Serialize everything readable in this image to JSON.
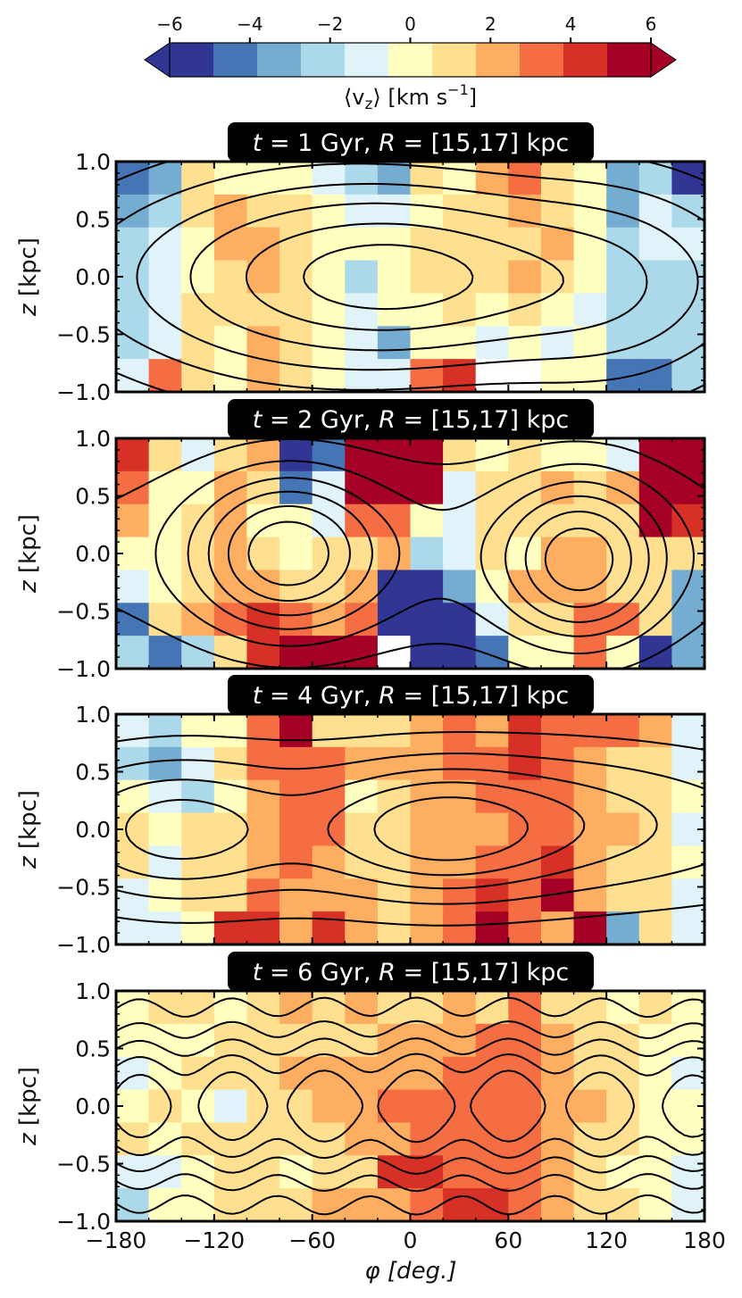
{
  "chart_data": {
    "type": "heatmap",
    "colorbar": {
      "label_prefix": "⟨v",
      "label_sub": "z",
      "label_suffix": "⟩ [km s",
      "label_sup": "−1",
      "label_end": "]",
      "range": [
        -6,
        6
      ],
      "ticks": [
        -6,
        -4,
        -2,
        0,
        2,
        4,
        6
      ],
      "tick_labels": [
        "−6",
        "−4",
        "−2",
        "0",
        "2",
        "4",
        "6"
      ],
      "extend": "both",
      "colors": [
        "#313695",
        "#4575b4",
        "#74add1",
        "#abd9e9",
        "#e0f3f8",
        "#ffffbf",
        "#fee090",
        "#fdae61",
        "#f46d43",
        "#d73027",
        "#a50026"
      ]
    },
    "xlabel": "φ [deg.]",
    "ylabel": "z [kpc]",
    "xlim": [
      -180,
      180
    ],
    "ylim": [
      -1.0,
      1.0
    ],
    "xticks": [
      -180,
      -120,
      -60,
      0,
      60,
      120,
      180
    ],
    "xtick_labels": [
      "−180",
      "−120",
      "−60",
      "0",
      "60",
      "120",
      "180"
    ],
    "yticks": [
      1.0,
      0.5,
      0.0,
      -0.5,
      -1.0
    ],
    "ytick_labels": [
      "1.0",
      "0.5",
      "0.0",
      "−0.5",
      "−1.0"
    ],
    "grid": {
      "n_phi_bins": 18,
      "n_z_bins": 7,
      "phi_bin_width_deg": 20
    },
    "panels": [
      {
        "title_t": "t",
        "title_eq": " =  ",
        "title_age": "1 Gyr, ",
        "title_r": "R",
        "title_range": " = [15,17] kpc",
        "values": [
          [
            -4,
            -3,
            1,
            0,
            0,
            0,
            -1,
            -2,
            -3,
            1,
            0,
            2,
            3,
            1,
            0,
            -3,
            -2,
            -5
          ],
          [
            -3,
            -2,
            1,
            2,
            1,
            1,
            0,
            -1,
            -1,
            0,
            1,
            1,
            2,
            1,
            0,
            -3,
            -1,
            -2
          ],
          [
            -2,
            -1,
            0,
            2,
            2,
            1,
            0,
            0,
            0,
            1,
            1,
            1,
            1,
            2,
            0,
            -2,
            -1,
            -1
          ],
          [
            -2,
            -1,
            0,
            1,
            2,
            1,
            0,
            -2,
            0,
            1,
            1,
            1,
            2,
            1,
            0,
            -2,
            -2,
            -2
          ],
          [
            -2,
            -1,
            1,
            1,
            1,
            1,
            0,
            -1,
            0,
            0,
            1,
            0,
            1,
            0,
            -1,
            -2,
            -2,
            -2
          ],
          [
            -2,
            -1,
            1,
            0,
            2,
            1,
            0,
            -1,
            -3,
            0,
            0,
            -1,
            0,
            -1,
            0,
            -2,
            -2,
            -2
          ],
          [
            -1,
            3,
            1,
            0,
            2,
            1,
            0,
            -1,
            -1,
            3,
            4,
            null,
            null,
            0,
            0,
            -4,
            -4,
            -2
          ]
        ],
        "contour_levels": [
          0.15,
          0.28,
          0.42,
          0.58,
          0.75,
          0.9
        ]
      },
      {
        "title_t": "t",
        "title_eq": " =  ",
        "title_age": "2 Gyr, ",
        "title_r": "R",
        "title_range": " = [15,17] kpc",
        "values": [
          [
            4,
            1,
            -1,
            1,
            2,
            -5,
            -4,
            6,
            6,
            6,
            1,
            0,
            1,
            0,
            0,
            -1,
            6,
            6
          ],
          [
            3,
            0,
            0,
            2,
            1,
            -4,
            -1,
            6,
            6,
            6,
            -1,
            1,
            1,
            2,
            1,
            2,
            5,
            6
          ],
          [
            2,
            0,
            1,
            2,
            0,
            0,
            -1,
            3,
            3,
            0,
            -1,
            1,
            1,
            1,
            1,
            1,
            6,
            4
          ],
          [
            0,
            0,
            1,
            2,
            1,
            0,
            1,
            1,
            2,
            -2,
            -1,
            1,
            0,
            2,
            2,
            1,
            1,
            1
          ],
          [
            -1,
            0,
            1,
            2,
            2,
            1,
            1,
            2,
            -5,
            -6,
            -3,
            0,
            2,
            2,
            2,
            1,
            1,
            -3
          ],
          [
            -4,
            1,
            2,
            3,
            4,
            3,
            2,
            3,
            -6,
            -6,
            -6,
            -1,
            1,
            1,
            3,
            3,
            1,
            -3
          ],
          [
            -2,
            -4,
            -2,
            1,
            4,
            6,
            6,
            6,
            null,
            -6,
            -6,
            -4,
            0,
            0,
            3,
            0,
            -6,
            -3
          ]
        ],
        "contour_levels": [
          0.12,
          0.24,
          0.38,
          0.52,
          0.68,
          0.84
        ]
      },
      {
        "title_t": "t",
        "title_eq": " =  ",
        "title_age": "4 Gyr, ",
        "title_r": "R",
        "title_range": " = [15,17] kpc",
        "values": [
          [
            -1,
            -2,
            0,
            0,
            3,
            5,
            1,
            1,
            1,
            2,
            3,
            2,
            4,
            3,
            3,
            3,
            2,
            -1
          ],
          [
            -2,
            -3,
            -1,
            1,
            3,
            3,
            3,
            2,
            2,
            2,
            3,
            3,
            4,
            3,
            2,
            1,
            1,
            -1
          ],
          [
            0,
            -1,
            -2,
            0,
            2,
            3,
            3,
            0,
            1,
            2,
            2,
            3,
            3,
            3,
            2,
            1,
            1,
            0
          ],
          [
            1,
            0,
            1,
            1,
            2,
            3,
            3,
            1,
            1,
            2,
            2,
            2,
            3,
            3,
            2,
            2,
            1,
            -1
          ],
          [
            1,
            -1,
            1,
            1,
            2,
            3,
            2,
            1,
            1,
            2,
            2,
            3,
            3,
            4,
            2,
            1,
            1,
            0
          ],
          [
            -1,
            0,
            1,
            1,
            3,
            2,
            2,
            2,
            1,
            2,
            3,
            4,
            3,
            6,
            2,
            1,
            1,
            -1
          ],
          [
            -1,
            -1,
            0,
            4,
            4,
            2,
            4,
            2,
            1,
            2,
            3,
            5,
            3,
            2,
            5,
            -3,
            1,
            -1
          ]
        ],
        "contour_levels": [
          0.15,
          0.3,
          0.46,
          0.62,
          0.8
        ]
      },
      {
        "title_t": "t",
        "title_eq": " =  ",
        "title_age": "6 Gyr, ",
        "title_r": "R",
        "title_range": " = [15,17] kpc",
        "values": [
          [
            0,
            1,
            1,
            0,
            1,
            2,
            1,
            2,
            1,
            1,
            2,
            1,
            3,
            1,
            1,
            0,
            1,
            0
          ],
          [
            0,
            0,
            0,
            1,
            1,
            1,
            1,
            1,
            2,
            2,
            2,
            3,
            3,
            2,
            1,
            1,
            0,
            0
          ],
          [
            -1,
            0,
            1,
            1,
            1,
            2,
            2,
            2,
            2,
            2,
            3,
            3,
            3,
            2,
            1,
            1,
            0,
            -1
          ],
          [
            0,
            1,
            0,
            -1,
            1,
            1,
            2,
            2,
            3,
            3,
            3,
            3,
            3,
            2,
            2,
            1,
            0,
            0
          ],
          [
            1,
            0,
            1,
            1,
            1,
            1,
            1,
            2,
            2,
            3,
            3,
            3,
            3,
            2,
            1,
            1,
            0,
            0
          ],
          [
            -1,
            -1,
            0,
            1,
            1,
            0,
            1,
            1,
            4,
            4,
            3,
            3,
            3,
            2,
            1,
            0,
            0,
            -1
          ],
          [
            -2,
            0,
            0,
            1,
            1,
            1,
            2,
            2,
            2,
            3,
            4,
            4,
            3,
            2,
            1,
            1,
            0,
            -1
          ]
        ],
        "contour_levels": [
          0.18,
          0.34,
          0.5,
          0.66,
          0.82
        ]
      }
    ]
  }
}
